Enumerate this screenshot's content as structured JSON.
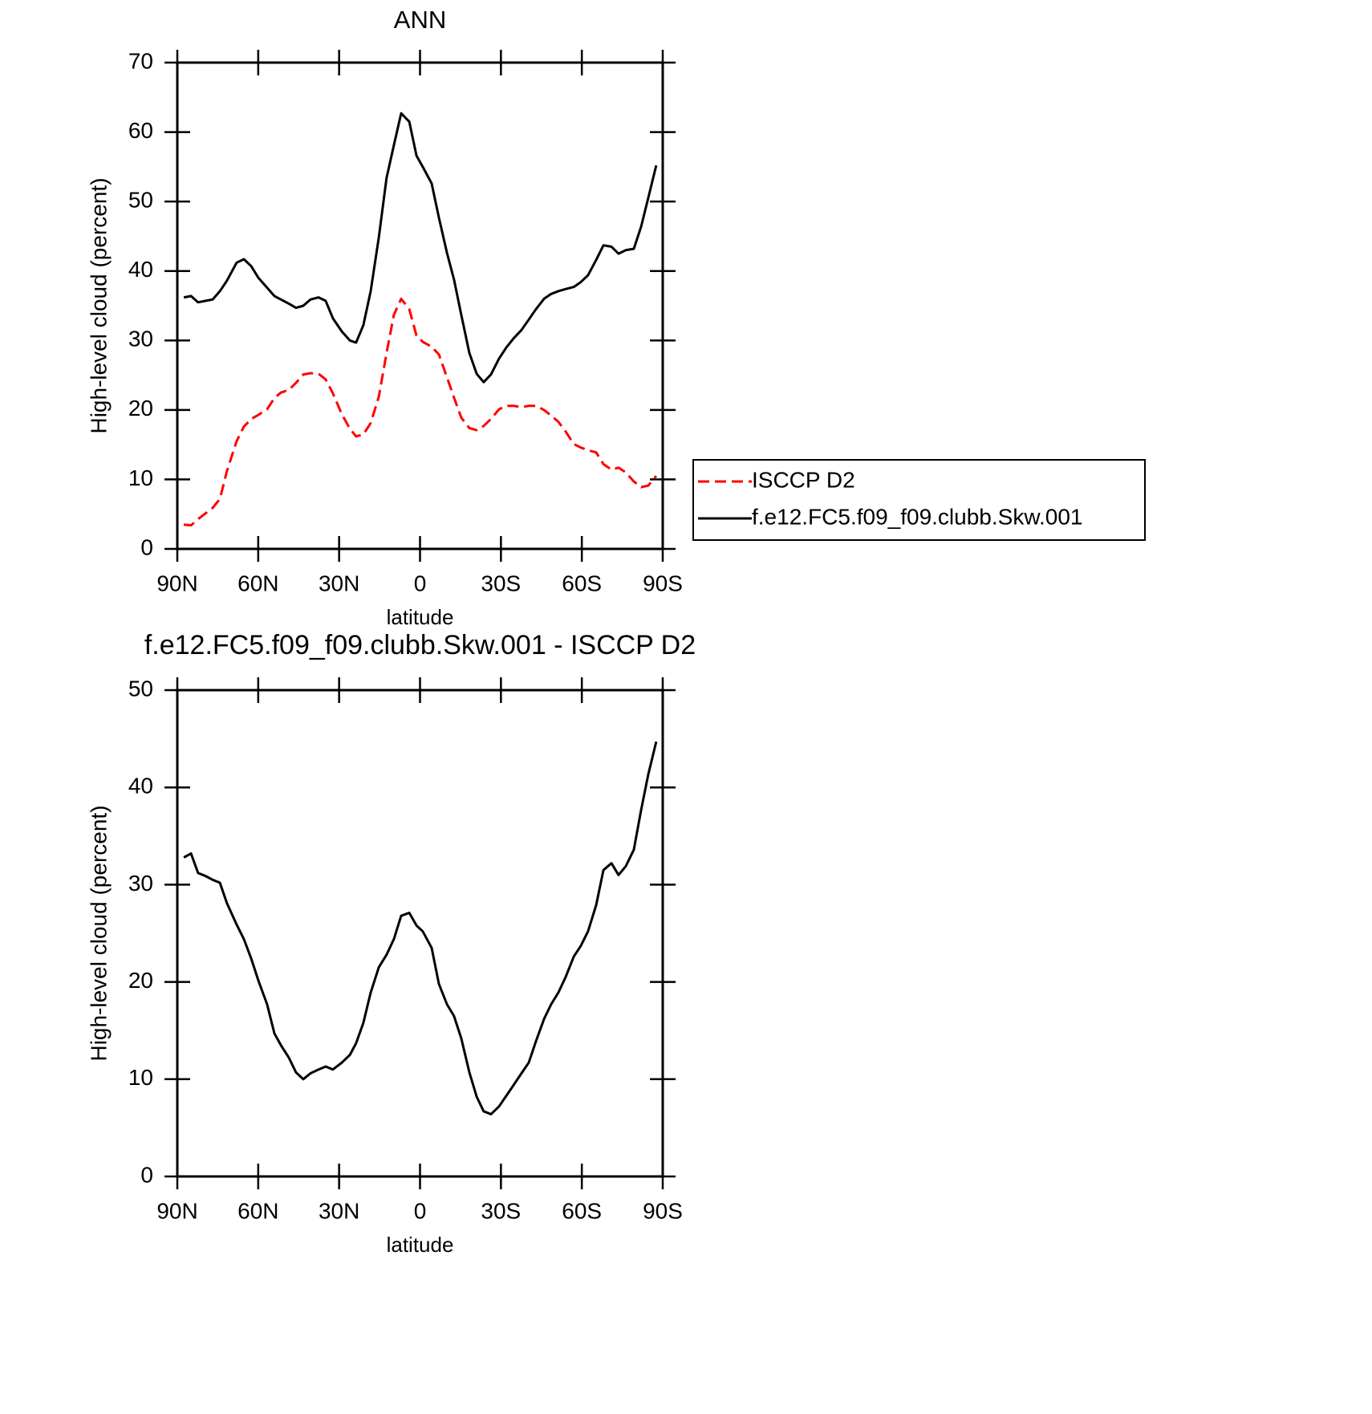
{
  "chart_data": [
    {
      "type": "line",
      "title": "ANN",
      "x_label": "latitude",
      "y_label": "High-level cloud (percent)",
      "x": [
        87.6,
        84.9,
        82.3,
        79.6,
        76.9,
        74.2,
        71.6,
        68.0,
        65.3,
        62.6,
        59.9,
        56.7,
        54.0,
        51.6,
        48.6,
        46.0,
        43.3,
        40.6,
        37.6,
        35.0,
        32.3,
        29.0,
        26.0,
        23.7,
        21.0,
        18.3,
        15.3,
        12.4,
        9.7,
        7.0,
        4.0,
        1.3,
        -1.0,
        -4.3,
        -7.0,
        -10.0,
        -12.6,
        -15.3,
        -18.3,
        -21.0,
        -23.6,
        -26.3,
        -29.3,
        -32.0,
        -34.7,
        -37.6,
        -40.3,
        -43.0,
        -46.0,
        -48.6,
        -51.3,
        -54.0,
        -57.0,
        -59.6,
        -62.3,
        -65.3,
        -68.0,
        -71.0,
        -73.6,
        -76.3,
        -79.3,
        -82.0,
        -84.6,
        -87.6
      ],
      "series": [
        {
          "name": "ISCCP D2",
          "color": "#ff0000",
          "dashed": true,
          "values": [
            3.5,
            3.4,
            4.3,
            5.1,
            5.9,
            7.2,
            11.2,
            15.5,
            17.6,
            18.7,
            19.3,
            20.1,
            21.7,
            22.5,
            22.9,
            23.9,
            25.1,
            25.3,
            25.2,
            24.4,
            22.4,
            19.4,
            17.3,
            16.2,
            16.5,
            18.1,
            21.9,
            28.2,
            33.7,
            36.0,
            34.5,
            30.7,
            29.8,
            29.1,
            28.0,
            24.7,
            21.8,
            18.9,
            17.4,
            17.1,
            17.7,
            18.7,
            20.1,
            20.6,
            20.6,
            20.4,
            20.6,
            20.6,
            20.0,
            19.2,
            18.3,
            16.9,
            15.1,
            14.6,
            14.2,
            13.9,
            12.2,
            11.4,
            11.7,
            11.0,
            9.7,
            8.9,
            9.1,
            10.5
          ]
        },
        {
          "name": "f.e12.FC5.f09_f09.clubb.Skw.001",
          "color": "#000000",
          "dashed": false,
          "values": [
            36.2,
            36.4,
            35.5,
            35.7,
            35.9,
            37.1,
            38.6,
            41.2,
            41.7,
            40.7,
            39.0,
            37.6,
            36.4,
            35.9,
            35.3,
            34.7,
            35.0,
            35.9,
            36.2,
            35.7,
            33.2,
            31.3,
            30.0,
            29.7,
            32.2,
            37.1,
            44.8,
            53.4,
            58.1,
            62.7,
            61.5,
            56.6,
            55.0,
            52.6,
            47.7,
            42.6,
            38.8,
            33.7,
            28.2,
            25.2,
            24.0,
            25.1,
            27.4,
            29.0,
            30.3,
            31.5,
            33.0,
            34.5,
            36.0,
            36.7,
            37.1,
            37.4,
            37.7,
            38.4,
            39.4,
            41.6,
            43.7,
            43.5,
            42.5,
            43.0,
            43.2,
            46.4,
            50.5,
            55.2
          ]
        }
      ],
      "xlim": [
        90,
        -90
      ],
      "xticks": [
        {
          "value": 90,
          "label": "90N"
        },
        {
          "value": 60,
          "label": "60N"
        },
        {
          "value": 30,
          "label": "30N"
        },
        0,
        {
          "value": -30,
          "label": "30S"
        },
        {
          "value": -60,
          "label": "60S"
        },
        {
          "value": -90,
          "label": "90S"
        }
      ],
      "ylim": [
        0,
        70
      ],
      "yticks": [
        0,
        10,
        20,
        30,
        40,
        50,
        60,
        70
      ],
      "legend": "right"
    },
    {
      "type": "line",
      "title": "f.e12.FC5.f09_f09.clubb.Skw.001 - ISCCP D2",
      "x_label": "latitude",
      "y_label": "High-level cloud (percent)",
      "x": [
        87.6,
        84.9,
        82.3,
        79.6,
        76.9,
        74.2,
        71.6,
        68.0,
        65.3,
        62.6,
        59.9,
        56.7,
        54.0,
        51.6,
        48.6,
        46.0,
        43.3,
        40.6,
        37.6,
        35.0,
        32.3,
        29.0,
        26.0,
        23.7,
        21.0,
        18.3,
        15.3,
        12.4,
        9.7,
        7.0,
        4.0,
        1.3,
        -1.0,
        -4.3,
        -7.0,
        -10.0,
        -12.6,
        -15.3,
        -18.3,
        -21.0,
        -23.6,
        -26.3,
        -29.3,
        -32.0,
        -34.7,
        -37.6,
        -40.3,
        -43.0,
        -46.0,
        -48.6,
        -51.3,
        -54.0,
        -57.0,
        -59.6,
        -62.3,
        -65.3,
        -68.0,
        -71.0,
        -73.6,
        -76.3,
        -79.3,
        -82.0,
        -84.6,
        -87.6
      ],
      "series": [
        {
          "color": "#000000",
          "dashed": false,
          "values": [
            32.8,
            33.2,
            31.2,
            30.9,
            30.5,
            30.2,
            28.1,
            25.9,
            24.4,
            22.4,
            20.1,
            17.7,
            14.7,
            13.5,
            12.2,
            10.7,
            10.0,
            10.6,
            11.0,
            11.3,
            11.0,
            11.7,
            12.5,
            13.7,
            15.8,
            18.9,
            21.5,
            22.8,
            24.4,
            26.8,
            27.1,
            25.8,
            25.2,
            23.5,
            19.8,
            17.7,
            16.5,
            14.2,
            10.7,
            8.2,
            6.7,
            6.4,
            7.2,
            8.3,
            9.4,
            10.6,
            11.7,
            13.9,
            16.2,
            17.7,
            18.9,
            20.5,
            22.6,
            23.7,
            25.2,
            27.9,
            31.5,
            32.2,
            31.0,
            31.9,
            33.6,
            37.7,
            41.3,
            44.7
          ]
        }
      ],
      "xlim": [
        90,
        -90
      ],
      "xticks": [
        {
          "value": 90,
          "label": "90N"
        },
        {
          "value": 60,
          "label": "60N"
        },
        {
          "value": 30,
          "label": "30N"
        },
        0,
        {
          "value": -30,
          "label": "30S"
        },
        {
          "value": -60,
          "label": "60S"
        },
        {
          "value": -90,
          "label": "90S"
        }
      ],
      "ylim": [
        0,
        50
      ],
      "yticks": [
        0,
        10,
        20,
        30,
        40,
        50
      ]
    }
  ]
}
